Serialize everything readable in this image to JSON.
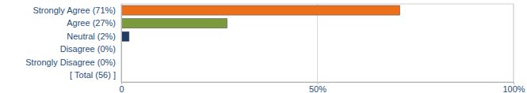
{
  "chart_data": {
    "type": "bar",
    "orientation": "horizontal",
    "categories": [
      "Strongly Agree (71%)",
      "Agree (27%)",
      "Neutral (2%)",
      "Disagree (0%)",
      "Strongly Disagree (0%)",
      "[ Total (56) ]"
    ],
    "values": [
      71,
      27,
      2,
      0,
      0,
      null
    ],
    "colors": [
      "#ec6f1a",
      "#7a9a3c",
      "#1f3a63",
      "#c0504d",
      "#8064a2",
      null
    ],
    "xlim": [
      0,
      100
    ],
    "xticks": [
      0,
      {
        "value": 50,
        "label": "50%"
      },
      {
        "value": 100,
        "label": "100%"
      }
    ],
    "grid": true
  }
}
